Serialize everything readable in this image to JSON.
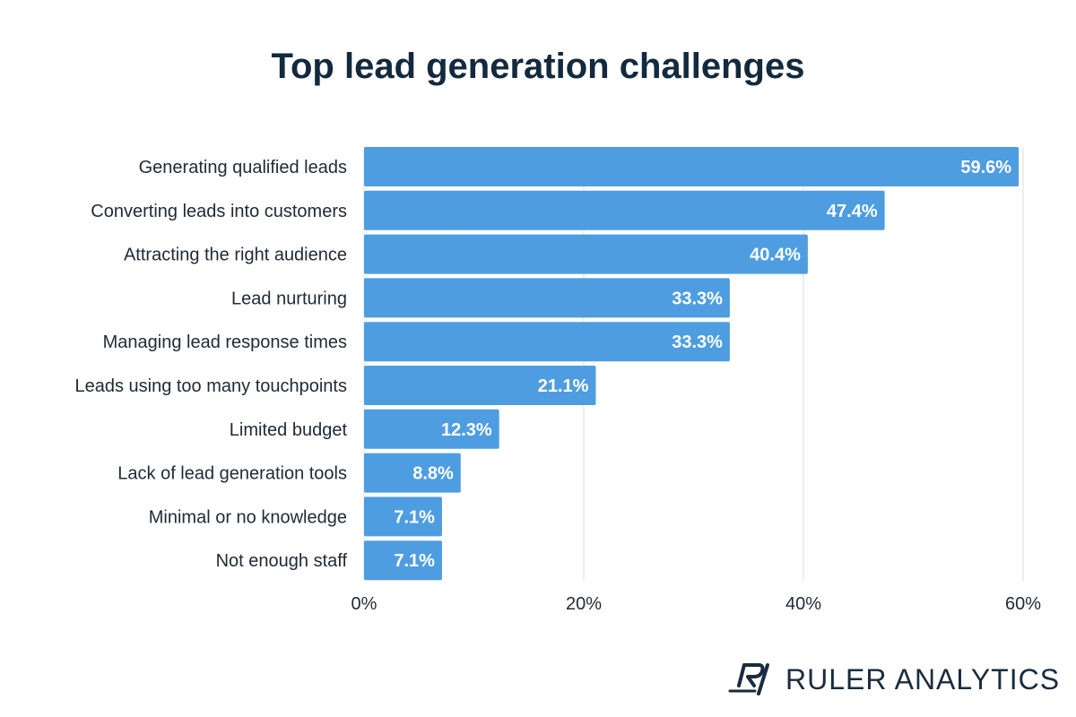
{
  "chart_data": {
    "type": "bar",
    "orientation": "horizontal",
    "title": "Top lead generation challenges",
    "categories": [
      "Generating qualified leads",
      "Converting leads into customers",
      "Attracting the right audience",
      "Lead nurturing",
      "Managing lead response times",
      "Leads using too many touchpoints",
      "Limited budget",
      "Lack of lead generation tools",
      "Minimal or no knowledge",
      "Not enough staff"
    ],
    "values": [
      59.6,
      47.4,
      40.4,
      33.3,
      33.3,
      21.1,
      12.3,
      8.8,
      7.1,
      7.1
    ],
    "data_labels": [
      "59.6%",
      "47.4%",
      "40.4%",
      "33.3%",
      "33.3%",
      "21.1%",
      "12.3%",
      "8.8%",
      "7.1%",
      "7.1%"
    ],
    "xlim": [
      0,
      60
    ],
    "x_ticks": [
      0,
      20,
      40,
      60
    ],
    "x_tick_labels": [
      "0%",
      "20%",
      "40%",
      "60%"
    ],
    "grid": "vertical",
    "bar_color": "#4e9de0"
  },
  "brand": {
    "name": "RULER ANALYTICS",
    "logo_icon": "ruler-analytics-logo"
  }
}
